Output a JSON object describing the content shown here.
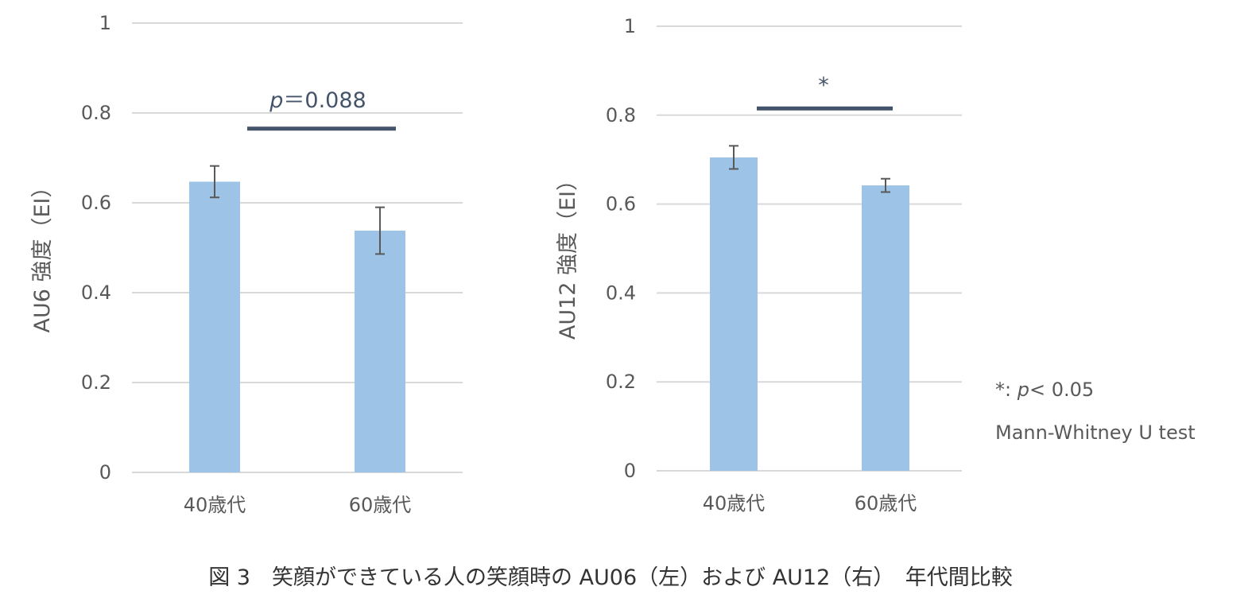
{
  "colors": {
    "bar": "#9dc3e6",
    "grid": "#d9d9d9",
    "axis_text": "#595959",
    "sig_line": "#44546a",
    "error_bar": "#595959"
  },
  "chart_data": [
    {
      "type": "bar",
      "categories": [
        "40歳代",
        "60歳代"
      ],
      "values": [
        0.647,
        0.538
      ],
      "errors": [
        0.035,
        0.052
      ],
      "ylabel": "AU6 強度（EI）",
      "ylim": [
        0,
        1
      ],
      "yticks": [
        "0",
        "0.2",
        "0.4",
        "0.6",
        "0.8",
        "1"
      ],
      "grid": true,
      "significance": {
        "label_italic": "p",
        "label_rest": "＝0.088",
        "level": 0.765
      }
    },
    {
      "type": "bar",
      "categories": [
        "40歳代",
        "60歳代"
      ],
      "values": [
        0.705,
        0.642
      ],
      "errors": [
        0.026,
        0.015
      ],
      "ylabel": "AU12 強度（EI）",
      "ylim": [
        0,
        1
      ],
      "yticks": [
        "0",
        "0.2",
        "0.4",
        "0.6",
        "0.8",
        "1"
      ],
      "grid": true,
      "significance": {
        "label_italic": "",
        "label_rest": "*",
        "level": 0.815
      }
    }
  ],
  "notes": {
    "sig_prefix": "*: ",
    "sig_p": "p",
    "sig_rest": "< 0.05",
    "test": "Mann-Whitney U test"
  },
  "caption": "図 3　笑顔ができている人の笑顔時の AU06（左）および AU12（右）　年代間比較"
}
